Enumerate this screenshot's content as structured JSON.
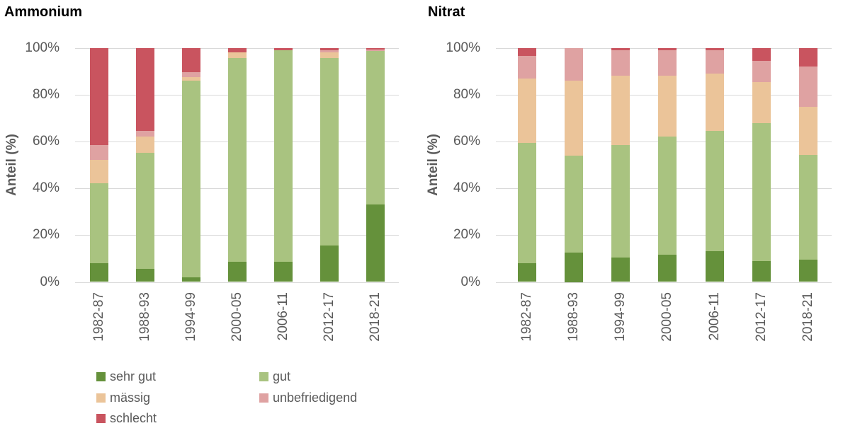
{
  "chart_data": [
    {
      "type": "bar",
      "stacked": true,
      "title": "Ammonium",
      "xlabel": "",
      "ylabel": "Anteil (%)",
      "ylim": [
        0,
        100
      ],
      "grid": true,
      "yticks": [
        "0%",
        "20%",
        "40%",
        "60%",
        "80%",
        "100%"
      ],
      "categories": [
        "1982-87",
        "1988-93",
        "1994-99",
        "2000-05",
        "2006-11",
        "2012-17",
        "2018-21"
      ],
      "series": [
        {
          "name": "sehr gut",
          "color": "#65913B",
          "values": [
            8,
            5.5,
            2,
            8.5,
            8.5,
            15.5,
            33
          ]
        },
        {
          "name": "gut",
          "color": "#A9C380",
          "values": [
            34,
            49.5,
            84,
            87,
            90.5,
            80,
            65.6
          ]
        },
        {
          "name": "mässig",
          "color": "#EBC499",
          "values": [
            10,
            7,
            1.5,
            2.5,
            0,
            2.5,
            0
          ]
        },
        {
          "name": "unbefriedigend",
          "color": "#DFA2A2",
          "values": [
            6.5,
            2.5,
            2,
            0,
            0,
            1,
            0.7
          ]
        },
        {
          "name": "schlecht",
          "color": "#C9545F",
          "values": [
            41.5,
            35.5,
            10.5,
            2,
            1,
            1,
            0.7
          ]
        }
      ]
    },
    {
      "type": "bar",
      "stacked": true,
      "title": "Nitrat",
      "xlabel": "",
      "ylabel": "Anteil (%)",
      "ylim": [
        0,
        100
      ],
      "grid": true,
      "yticks": [
        "0%",
        "20%",
        "40%",
        "60%",
        "80%",
        "100%"
      ],
      "categories": [
        "1982-87",
        "1988-93",
        "1994-99",
        "2000-05",
        "2006-11",
        "2012-17",
        "2018-21"
      ],
      "series": [
        {
          "name": "sehr gut",
          "color": "#65913B",
          "values": [
            8,
            12.5,
            10.5,
            11.5,
            13,
            9,
            9.5
          ]
        },
        {
          "name": "gut",
          "color": "#A9C380",
          "values": [
            51.5,
            41.5,
            48,
            50.5,
            51.5,
            58.8,
            44.7
          ]
        },
        {
          "name": "mässig",
          "color": "#EBC499",
          "values": [
            27.5,
            32,
            29.5,
            26,
            24.5,
            17.5,
            20.5
          ]
        },
        {
          "name": "unbefriedigend",
          "color": "#DFA2A2",
          "values": [
            9.5,
            14,
            11,
            11,
            9.8,
            9.2,
            17.2
          ]
        },
        {
          "name": "schlecht",
          "color": "#C9545F",
          "values": [
            3.5,
            0,
            1,
            1,
            1.2,
            5.5,
            8.1
          ]
        }
      ]
    }
  ],
  "legend": {
    "position": "bottom-left",
    "items": [
      {
        "label": "sehr gut",
        "color": "#65913B"
      },
      {
        "label": "gut",
        "color": "#A9C380"
      },
      {
        "label": "mässig",
        "color": "#EBC499"
      },
      {
        "label": "unbefriedigend",
        "color": "#DFA2A2"
      },
      {
        "label": "schlecht",
        "color": "#C9545F"
      }
    ]
  }
}
